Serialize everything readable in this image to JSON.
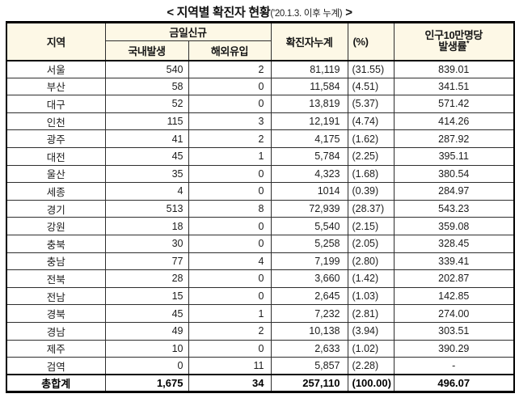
{
  "title": {
    "main": "< 지역별 확진자 현황",
    "sub": "('20.1.3. 이후 누계)",
    "close": " >"
  },
  "table": {
    "headers": {
      "region": "지역",
      "today_new": "금일신규",
      "domestic": "국내발생",
      "imported": "해외유입",
      "cumulative": "확진자누계",
      "percent": "(%)",
      "per100k_line1": "인구10만명당",
      "per100k_line2": "발생률",
      "per100k_mark": "*"
    },
    "rows": [
      {
        "region": "서울",
        "domestic": "540",
        "imported": "2",
        "cumulative": "81,119",
        "percent": "(31.55)",
        "per100k": "839.01"
      },
      {
        "region": "부산",
        "domestic": "58",
        "imported": "0",
        "cumulative": "11,584",
        "percent": "(4.51)",
        "per100k": "341.51"
      },
      {
        "region": "대구",
        "domestic": "52",
        "imported": "0",
        "cumulative": "13,819",
        "percent": "(5.37)",
        "per100k": "571.42"
      },
      {
        "region": "인천",
        "domestic": "115",
        "imported": "3",
        "cumulative": "12,191",
        "percent": "(4.74)",
        "per100k": "414.26"
      },
      {
        "region": "광주",
        "domestic": "41",
        "imported": "2",
        "cumulative": "4,175",
        "percent": "(1.62)",
        "per100k": "287.92"
      },
      {
        "region": "대전",
        "domestic": "45",
        "imported": "1",
        "cumulative": "5,784",
        "percent": "(2.25)",
        "per100k": "395.11"
      },
      {
        "region": "울산",
        "domestic": "35",
        "imported": "0",
        "cumulative": "4,323",
        "percent": "(1.68)",
        "per100k": "380.54"
      },
      {
        "region": "세종",
        "domestic": "4",
        "imported": "0",
        "cumulative": "1014",
        "percent": "(0.39)",
        "per100k": "284.97"
      },
      {
        "region": "경기",
        "domestic": "513",
        "imported": "8",
        "cumulative": "72,939",
        "percent": "(28.37)",
        "per100k": "543.23"
      },
      {
        "region": "강원",
        "domestic": "18",
        "imported": "0",
        "cumulative": "5,540",
        "percent": "(2.15)",
        "per100k": "359.08"
      },
      {
        "region": "충북",
        "domestic": "30",
        "imported": "0",
        "cumulative": "5,258",
        "percent": "(2.05)",
        "per100k": "328.45"
      },
      {
        "region": "충남",
        "domestic": "77",
        "imported": "4",
        "cumulative": "7,199",
        "percent": "(2.80)",
        "per100k": "339.41"
      },
      {
        "region": "전북",
        "domestic": "28",
        "imported": "0",
        "cumulative": "3,660",
        "percent": "(1.42)",
        "per100k": "202.87"
      },
      {
        "region": "전남",
        "domestic": "15",
        "imported": "0",
        "cumulative": "2,645",
        "percent": "(1.03)",
        "per100k": "142.85"
      },
      {
        "region": "경북",
        "domestic": "45",
        "imported": "1",
        "cumulative": "7,232",
        "percent": "(2.81)",
        "per100k": "274.00"
      },
      {
        "region": "경남",
        "domestic": "49",
        "imported": "2",
        "cumulative": "10,138",
        "percent": "(3.94)",
        "per100k": "303.51"
      },
      {
        "region": "제주",
        "domestic": "10",
        "imported": "0",
        "cumulative": "2,633",
        "percent": "(1.02)",
        "per100k": "390.29"
      },
      {
        "region": "검역",
        "domestic": "0",
        "imported": "11",
        "cumulative": "5,857",
        "percent": "(2.28)",
        "per100k": "-"
      }
    ],
    "total": {
      "region": "총합계",
      "domestic": "1,675",
      "imported": "34",
      "cumulative": "257,110",
      "percent": "(100.00)",
      "per100k": "496.07"
    }
  },
  "colors": {
    "header_bg": "#FDF8E6",
    "border": "#000000",
    "text": "#1F1F1F"
  },
  "chart_data": {
    "type": "table",
    "title": "지역별 확진자 현황('20.1.3. 이후 누계)",
    "columns": [
      "지역",
      "금일신규 국내발생",
      "금일신규 해외유입",
      "확진자누계",
      "(%)",
      "인구10만명당 발생률"
    ],
    "rows": [
      [
        "서울",
        540,
        2,
        81119,
        31.55,
        839.01
      ],
      [
        "부산",
        58,
        0,
        11584,
        4.51,
        341.51
      ],
      [
        "대구",
        52,
        0,
        13819,
        5.37,
        571.42
      ],
      [
        "인천",
        115,
        3,
        12191,
        4.74,
        414.26
      ],
      [
        "광주",
        41,
        2,
        4175,
        1.62,
        287.92
      ],
      [
        "대전",
        45,
        1,
        5784,
        2.25,
        395.11
      ],
      [
        "울산",
        35,
        0,
        4323,
        1.68,
        380.54
      ],
      [
        "세종",
        4,
        0,
        1014,
        0.39,
        284.97
      ],
      [
        "경기",
        513,
        8,
        72939,
        28.37,
        543.23
      ],
      [
        "강원",
        18,
        0,
        5540,
        2.15,
        359.08
      ],
      [
        "충북",
        30,
        0,
        5258,
        2.05,
        328.45
      ],
      [
        "충남",
        77,
        4,
        7199,
        2.8,
        339.41
      ],
      [
        "전북",
        28,
        0,
        3660,
        1.42,
        202.87
      ],
      [
        "전남",
        15,
        0,
        2645,
        1.03,
        142.85
      ],
      [
        "경북",
        45,
        1,
        7232,
        2.81,
        274.0
      ],
      [
        "경남",
        49,
        2,
        10138,
        3.94,
        303.51
      ],
      [
        "제주",
        10,
        0,
        2633,
        1.02,
        390.29
      ],
      [
        "검역",
        0,
        11,
        5857,
        2.28,
        null
      ]
    ],
    "total_row": [
      "총합계",
      1675,
      34,
      257110,
      100.0,
      496.07
    ]
  }
}
